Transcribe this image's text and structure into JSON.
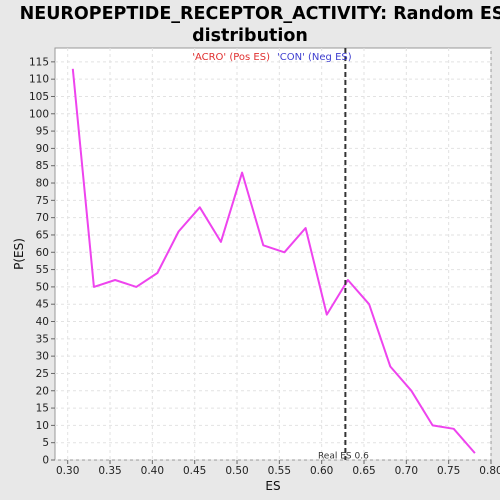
{
  "chart_data": {
    "type": "line",
    "title_line1": "NEUROPEPTIDE_RECEPTOR_ACTIVITY: Random ES",
    "title_line2": "distribution",
    "xlabel": "ES",
    "ylabel": "P(ES)",
    "xlim": [
      0.285,
      0.8
    ],
    "ylim": [
      0,
      119
    ],
    "x_ticks": [
      0.3,
      0.35,
      0.4,
      0.45,
      0.5,
      0.55,
      0.6,
      0.65,
      0.7,
      0.75,
      0.8
    ],
    "x_tick_labels": [
      "0.30",
      "0.35",
      "0.40",
      "0.45",
      "0.50",
      "0.55",
      "0.60",
      "0.65",
      "0.70",
      "0.75",
      "0.80"
    ],
    "y_ticks": [
      0,
      5,
      10,
      15,
      20,
      25,
      30,
      35,
      40,
      45,
      50,
      55,
      60,
      65,
      70,
      75,
      80,
      85,
      90,
      95,
      100,
      105,
      110,
      115
    ],
    "grid": true,
    "legend": [
      {
        "label": "'ACRO' (Pos ES)",
        "color": "#e03030"
      },
      {
        "label": "'CON' (Neg ES)",
        "color": "#4040d0"
      }
    ],
    "series": [
      {
        "color": "#ee44ee",
        "x": [
          0.306,
          0.331,
          0.356,
          0.381,
          0.406,
          0.431,
          0.456,
          0.481,
          0.506,
          0.531,
          0.556,
          0.581,
          0.606,
          0.631,
          0.656,
          0.681,
          0.706,
          0.731,
          0.756,
          0.781
        ],
        "y": [
          113,
          50,
          52,
          50,
          54,
          66,
          73,
          63,
          83,
          62,
          60,
          67,
          42,
          52,
          45,
          27,
          20,
          10,
          9,
          2
        ]
      }
    ],
    "reference_line": {
      "x": 0.628,
      "label": "Real ES 0.6",
      "style": "dashed",
      "color": "#333333"
    }
  }
}
